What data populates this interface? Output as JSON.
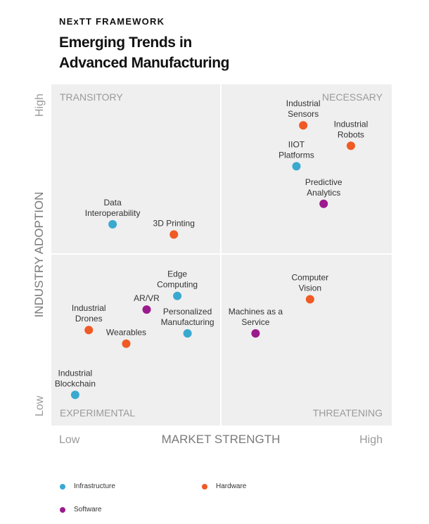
{
  "header": {
    "eyebrow": "NExTT FRAMEWORK",
    "title_line1": "Emerging Trends in",
    "title_line2": "Advanced Manufacturing"
  },
  "colors": {
    "plot_bg": "#efefef",
    "divider": "#ffffff",
    "label_gray": "#9a9a9a",
    "axis_gray": "#7a7a7a",
    "infrastructure": "#3aa9cf",
    "hardware": "#f05a24",
    "software": "#9b1b8c"
  },
  "chart_data": {
    "type": "scatter",
    "xlabel": "MARKET STRENGTH",
    "ylabel": "INDUSTRY ADOPTION",
    "x_low_label": "Low",
    "x_high_label": "High",
    "y_low_label": "Low",
    "y_high_label": "High",
    "xlim": [
      0,
      1
    ],
    "ylim": [
      0,
      1
    ],
    "quadrants": {
      "top_left": "TRANSITORY",
      "top_right": "NECESSARY",
      "bottom_left": "EXPERIMENTAL",
      "bottom_right": "THREATENING"
    },
    "legend": [
      {
        "key": "infrastructure",
        "label": "Infrastructure"
      },
      {
        "key": "hardware",
        "label": "Hardware"
      },
      {
        "key": "software",
        "label": "Software"
      }
    ],
    "points": [
      {
        "label": [
          "Industrial",
          "Sensors"
        ],
        "category": "hardware",
        "x": 0.74,
        "y": 0.88,
        "label_pos": "above"
      },
      {
        "label": [
          "Industrial",
          "Robots"
        ],
        "category": "hardware",
        "x": 0.88,
        "y": 0.82,
        "label_pos": "above"
      },
      {
        "label": [
          "IIOT",
          "Platforms"
        ],
        "category": "infrastructure",
        "x": 0.72,
        "y": 0.76,
        "label_pos": "above"
      },
      {
        "label": [
          "Predictive",
          "Analytics"
        ],
        "category": "software",
        "x": 0.8,
        "y": 0.65,
        "label_pos": "above"
      },
      {
        "label": [
          "Data",
          "Interoperability"
        ],
        "category": "infrastructure",
        "x": 0.18,
        "y": 0.59,
        "label_pos": "above"
      },
      {
        "label": [
          "3D Printing"
        ],
        "category": "hardware",
        "x": 0.36,
        "y": 0.56,
        "label_pos": "above"
      },
      {
        "label": [
          "Computer",
          "Vision"
        ],
        "category": "hardware",
        "x": 0.76,
        "y": 0.37,
        "label_pos": "above"
      },
      {
        "label": [
          "Edge",
          "Computing"
        ],
        "category": "infrastructure",
        "x": 0.37,
        "y": 0.38,
        "label_pos": "above"
      },
      {
        "label": [
          "AR/VR"
        ],
        "category": "software",
        "x": 0.28,
        "y": 0.34,
        "label_pos": "above"
      },
      {
        "label": [
          "Industrial",
          "Drones"
        ],
        "category": "hardware",
        "x": 0.11,
        "y": 0.28,
        "label_pos": "above"
      },
      {
        "label": [
          "Personalized",
          "Manufacturing"
        ],
        "category": "infrastructure",
        "x": 0.4,
        "y": 0.27,
        "label_pos": "above"
      },
      {
        "label": [
          "Machines as a",
          "Service"
        ],
        "category": "software",
        "x": 0.6,
        "y": 0.27,
        "label_pos": "above"
      },
      {
        "label": [
          "Wearables"
        ],
        "category": "hardware",
        "x": 0.22,
        "y": 0.24,
        "label_pos": "above"
      },
      {
        "label": [
          "Industrial",
          "Blockchain"
        ],
        "category": "infrastructure",
        "x": 0.07,
        "y": 0.09,
        "label_pos": "above"
      }
    ]
  }
}
